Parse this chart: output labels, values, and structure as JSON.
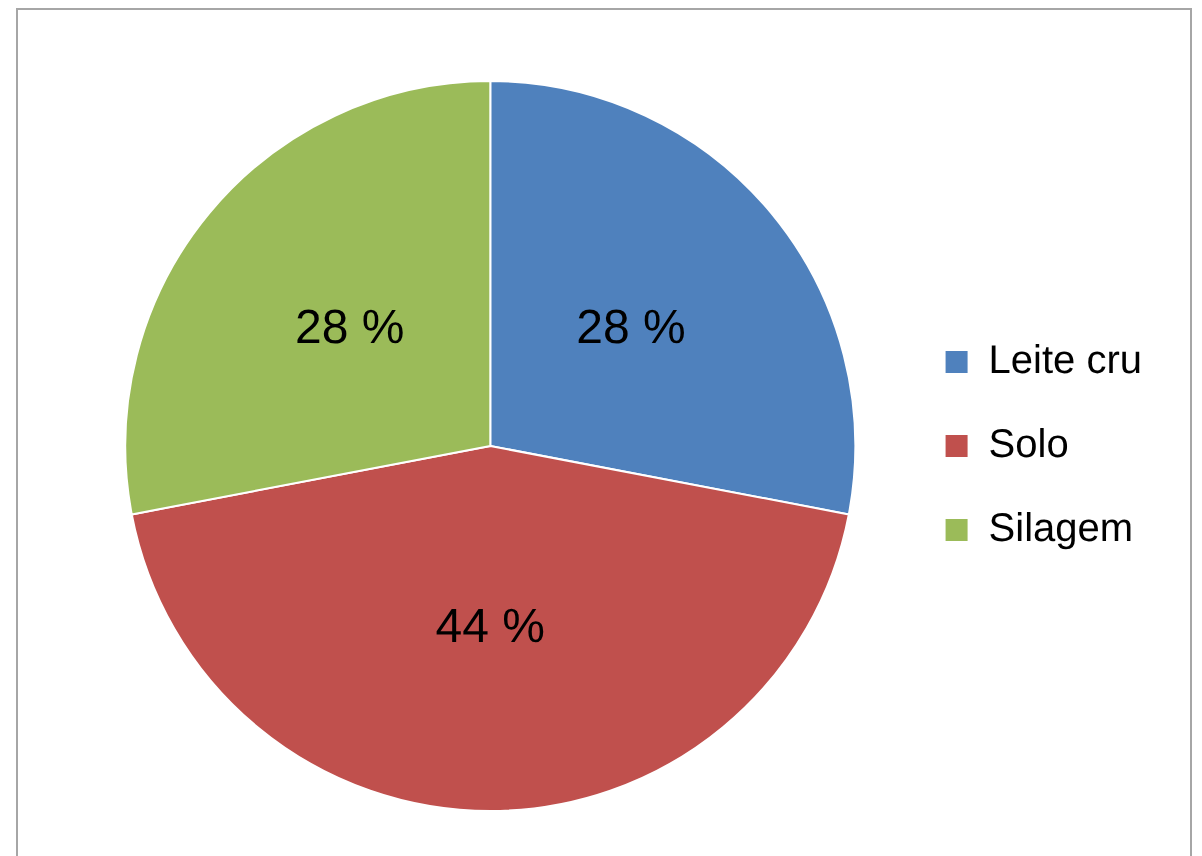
{
  "chart_data": {
    "type": "pie",
    "categories": [
      "Leite cru",
      "Solo",
      "Silagem"
    ],
    "values": [
      28,
      44,
      28
    ],
    "colors": [
      "#4f81bd",
      "#c0504d",
      "#9bbb59"
    ],
    "value_labels": [
      "28 %",
      "44 %",
      "28 %"
    ],
    "legend": "right"
  }
}
